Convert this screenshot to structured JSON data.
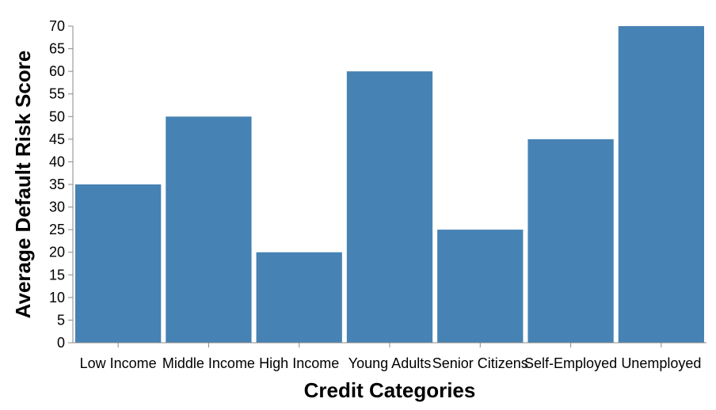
{
  "chart_data": {
    "type": "bar",
    "title": "",
    "xlabel": "Credit Categories",
    "ylabel": "Average Default Risk Score",
    "categories": [
      "Low Income",
      "Middle Income",
      "High Income",
      "Young Adults",
      "Senior Citizens",
      "Self-Employed",
      "Unemployed"
    ],
    "values": [
      35,
      50,
      20,
      60,
      25,
      45,
      70
    ],
    "ylim": [
      0,
      70
    ],
    "yticks": [
      0,
      5,
      10,
      15,
      20,
      25,
      30,
      35,
      40,
      45,
      50,
      55,
      60,
      65,
      70
    ],
    "grid": false,
    "bar_color": "#4682b4",
    "axis_color": "#888888"
  }
}
